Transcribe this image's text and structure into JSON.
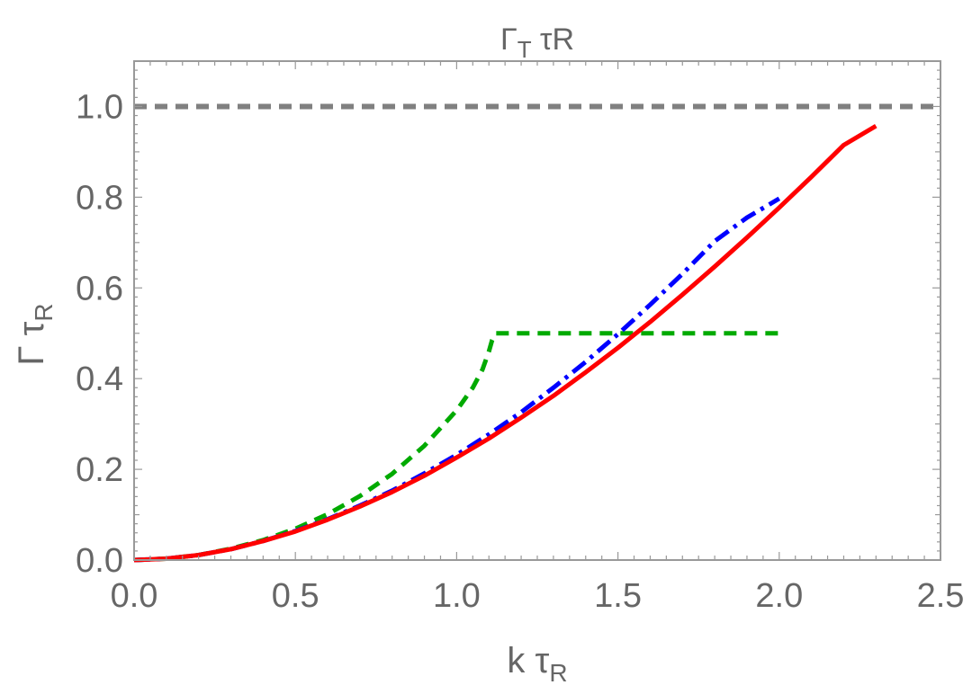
{
  "chart_data": {
    "type": "line",
    "title": {
      "main": "Γ",
      "sub": "T",
      "rest": " τR"
    },
    "xlabel": {
      "main": "k τ",
      "sub": "R"
    },
    "ylabel": {
      "main": "Γ τ",
      "sub": "R"
    },
    "xlim": [
      0,
      2.5
    ],
    "ylim": [
      0,
      1.1
    ],
    "xticks": [
      "0.0",
      "0.5",
      "1.0",
      "1.5",
      "2.0",
      "2.5"
    ],
    "yticks": [
      "0.0",
      "0.2",
      "0.4",
      "0.6",
      "0.8",
      "1.0"
    ],
    "grid": false,
    "reference_line": {
      "y": 1.0,
      "color": "#808080",
      "style": "dashed"
    },
    "series": [
      {
        "color": "#ff0000",
        "style": "solid",
        "x": [
          0.0,
          0.1,
          0.2,
          0.3,
          0.4,
          0.5,
          0.6,
          0.7,
          0.8,
          0.9,
          1.0,
          1.1,
          1.2,
          1.3,
          1.4,
          1.5,
          1.6,
          1.7,
          1.8,
          1.9,
          2.0,
          2.1,
          2.2,
          2.3
        ],
        "y": [
          0.0,
          0.003,
          0.011,
          0.024,
          0.042,
          0.063,
          0.089,
          0.118,
          0.15,
          0.186,
          0.226,
          0.268,
          0.314,
          0.362,
          0.414,
          0.468,
          0.525,
          0.585,
          0.647,
          0.711,
          0.777,
          0.845,
          0.915,
          0.957
        ]
      },
      {
        "color": "#0000ff",
        "style": "dashdot",
        "x": [
          0.0,
          0.1,
          0.2,
          0.3,
          0.4,
          0.5,
          0.6,
          0.7,
          0.8,
          0.9,
          1.0,
          1.1,
          1.2,
          1.3,
          1.4,
          1.5,
          1.6,
          1.7,
          1.8,
          1.9,
          2.0
        ],
        "y": [
          0.0,
          0.003,
          0.011,
          0.024,
          0.042,
          0.064,
          0.09,
          0.12,
          0.153,
          0.191,
          0.232,
          0.277,
          0.326,
          0.38,
          0.437,
          0.498,
          0.563,
          0.631,
          0.703,
          0.755,
          0.797
        ]
      },
      {
        "color": "#00aa00",
        "style": "dashed",
        "x": [
          0.0,
          0.1,
          0.2,
          0.3,
          0.4,
          0.5,
          0.6,
          0.7,
          0.8,
          0.9,
          1.0,
          1.05,
          1.08,
          1.1,
          1.11,
          1.12,
          1.2,
          1.4,
          1.6,
          1.8,
          2.0
        ],
        "y": [
          0.0,
          0.003,
          0.011,
          0.025,
          0.044,
          0.069,
          0.101,
          0.141,
          0.19,
          0.252,
          0.33,
          0.38,
          0.42,
          0.46,
          0.485,
          0.5,
          0.5,
          0.5,
          0.5,
          0.5,
          0.5
        ]
      }
    ]
  }
}
